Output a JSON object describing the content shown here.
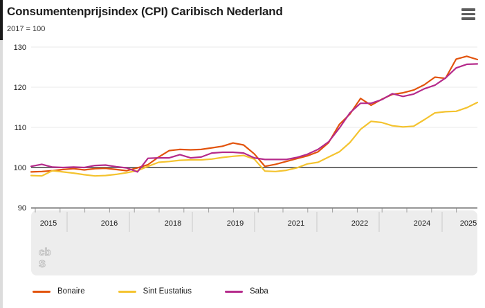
{
  "header": {
    "title": "Consumentenprijsindex (CPI) Caribisch Nederland",
    "subtitle": "2017 = 100",
    "menu_icon": "hamburger-icon"
  },
  "watermark": {
    "logo_text_top": "cb",
    "logo_text_bottom": "s",
    "name": "cbs-logo"
  },
  "chart_data": {
    "type": "line",
    "title": "Consumentenprijsindex (CPI) Caribisch Nederland",
    "subtitle": "2017 = 100",
    "xlabel": "",
    "ylabel": "",
    "ylim": [
      90,
      130
    ],
    "y_ticks": [
      90,
      100,
      110,
      120,
      130
    ],
    "baseline_value": 100,
    "grid": "horizontal",
    "legend_position": "bottom",
    "x_start": "2015-Q1",
    "x_end": "2025-Q3",
    "x_interval": "quarter",
    "x_tick_labels": [
      "2015",
      "2016",
      "2018",
      "2019",
      "2021",
      "2022",
      "2024",
      "2025"
    ],
    "series": [
      {
        "name": "Bonaire",
        "color": "#e2530c",
        "values": [
          98.9,
          99.0,
          99.2,
          99.5,
          99.7,
          99.4,
          99.7,
          99.8,
          99.5,
          99.2,
          99.9,
          100.7,
          102.6,
          104.2,
          104.5,
          104.4,
          104.5,
          104.9,
          105.3,
          106.1,
          105.6,
          103.4,
          100.3,
          100.8,
          101.5,
          102.2,
          102.9,
          103.9,
          106.2,
          110.7,
          113.3,
          117.2,
          115.5,
          117.0,
          118.2,
          118.6,
          119.3,
          120.6,
          122.5,
          122.2,
          127.0,
          127.7,
          126.9
        ]
      },
      {
        "name": "Sint Eustatius",
        "color": "#f4c32f",
        "values": [
          98.0,
          97.9,
          99.2,
          98.9,
          98.6,
          98.2,
          97.9,
          98.0,
          98.3,
          98.7,
          99.2,
          100.3,
          101.3,
          101.5,
          101.8,
          101.9,
          101.9,
          102.1,
          102.5,
          102.8,
          103.0,
          102.1,
          99.1,
          99.0,
          99.3,
          99.9,
          100.9,
          101.3,
          102.6,
          103.9,
          106.2,
          109.5,
          111.5,
          111.2,
          110.4,
          110.1,
          110.3,
          111.9,
          113.6,
          113.9,
          114.0,
          114.9,
          116.2
        ]
      },
      {
        "name": "Saba",
        "color": "#b52a8b",
        "values": [
          100.3,
          100.8,
          100.1,
          100.0,
          100.1,
          100.0,
          100.5,
          100.6,
          100.2,
          99.9,
          98.9,
          102.3,
          102.4,
          102.4,
          103.2,
          102.4,
          102.6,
          103.6,
          103.8,
          103.8,
          103.6,
          102.4,
          102.0,
          102.0,
          102.0,
          102.5,
          103.3,
          104.5,
          106.4,
          109.8,
          113.6,
          116.0,
          116.0,
          116.9,
          118.4,
          117.7,
          118.3,
          119.6,
          120.5,
          122.3,
          124.8,
          125.7,
          125.8
        ]
      }
    ],
    "colors": {
      "gridline": "#e8e8e8",
      "baseline": "#6e6e6e",
      "axis_line": "#444444",
      "panel_bg": "#ededed",
      "separator": "#c9c9c9",
      "tick": "#9e9e9e",
      "label_text": "#1a1a1a"
    }
  },
  "legend": {
    "items": [
      {
        "label": "Bonaire"
      },
      {
        "label": "Sint Eustatius"
      },
      {
        "label": "Saba"
      }
    ]
  }
}
